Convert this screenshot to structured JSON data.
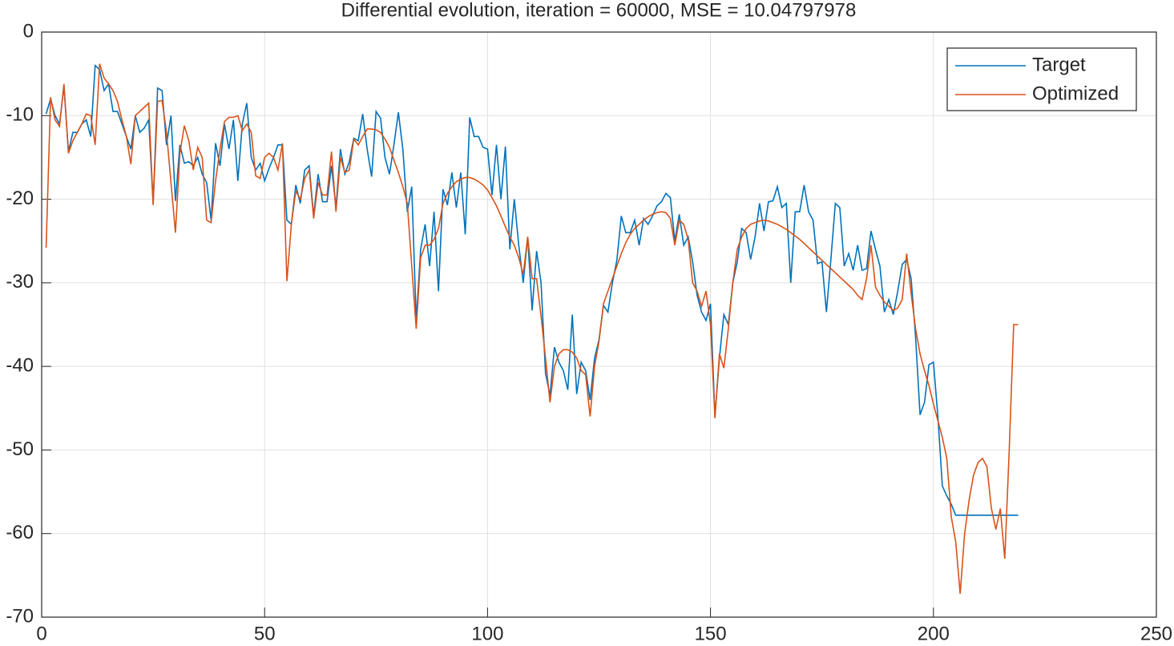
{
  "chart_data": {
    "type": "line",
    "title": "Differential evolution, iteration = 60000, MSE = 10.04797978",
    "x": [
      1,
      2,
      3,
      4,
      5,
      6,
      7,
      8,
      9,
      10,
      11,
      12,
      13,
      14,
      15,
      16,
      17,
      18,
      19,
      20,
      21,
      22,
      23,
      24,
      25,
      26,
      27,
      28,
      29,
      30,
      31,
      32,
      33,
      34,
      35,
      36,
      37,
      38,
      39,
      40,
      41,
      42,
      43,
      44,
      45,
      46,
      47,
      48,
      49,
      50,
      51,
      52,
      53,
      54,
      55,
      56,
      57,
      58,
      59,
      60,
      61,
      62,
      63,
      64,
      65,
      66,
      67,
      68,
      69,
      70,
      71,
      72,
      73,
      74,
      75,
      76,
      77,
      78,
      79,
      80,
      81,
      82,
      83,
      84,
      85,
      86,
      87,
      88,
      89,
      90,
      91,
      92,
      93,
      94,
      95,
      96,
      97,
      98,
      99,
      100,
      101,
      102,
      103,
      104,
      105,
      106,
      107,
      108,
      109,
      110,
      111,
      112,
      113,
      114,
      115,
      116,
      117,
      118,
      119,
      120,
      121,
      122,
      123,
      124,
      125,
      126,
      127,
      128,
      129,
      130,
      131,
      132,
      133,
      134,
      135,
      136,
      137,
      138,
      139,
      140,
      141,
      142,
      143,
      144,
      145,
      146,
      147,
      148,
      149,
      150,
      151,
      152,
      153,
      154,
      155,
      156,
      157,
      158,
      159,
      160,
      161,
      162,
      163,
      164,
      165,
      166,
      167,
      168,
      169,
      170,
      171,
      172,
      173,
      174,
      175,
      176,
      177,
      178,
      179,
      180,
      181,
      182,
      183,
      184,
      185,
      186,
      187,
      188,
      189,
      190,
      191,
      192,
      193,
      194,
      195,
      196,
      197,
      198,
      199,
      200,
      201,
      202,
      203,
      204,
      205,
      206,
      207,
      208,
      209,
      210,
      211,
      212,
      213,
      214,
      215,
      216,
      217,
      218,
      219
    ],
    "series": [
      {
        "name": "Target",
        "color": "#0072bd",
        "values": [
          -9.8,
          -8,
          -10,
          -11,
          -6.5,
          -14.3,
          -12,
          -12,
          -11,
          -10.5,
          -12.5,
          -4,
          -4.5,
          -7,
          -6.2,
          -9.5,
          -9.5,
          -11,
          -12.5,
          -14,
          -10,
          -12,
          -11.5,
          -10.5,
          -20.5,
          -6.7,
          -7,
          -13.5,
          -10,
          -20.2,
          -13.5,
          -15.7,
          -15.5,
          -16,
          -15,
          -17,
          -18,
          -22.5,
          -13.3,
          -16,
          -11,
          -14,
          -10.5,
          -17.8,
          -11,
          -8.5,
          -15,
          -16.5,
          -15.7,
          -17.8,
          -16.3,
          -15,
          -13.5,
          -13.5,
          -22.5,
          -23,
          -18.3,
          -20.5,
          -16.5,
          -16,
          -22,
          -17,
          -20.3,
          -20.3,
          -16,
          -21,
          -14,
          -17,
          -15.5,
          -12.7,
          -13,
          -9.8,
          -14,
          -17.3,
          -9.5,
          -10.3,
          -15,
          -17,
          -13.5,
          -9.6,
          -14,
          -21.5,
          -18.5,
          -34.5,
          -26,
          -23,
          -28,
          -21.5,
          -31,
          -18.8,
          -20.7,
          -16.8,
          -21,
          -16.8,
          -24.2,
          -10.2,
          -12.5,
          -12.5,
          -13.8,
          -14,
          -19.5,
          -13.5,
          -20,
          -13.7,
          -26,
          -20,
          -25.5,
          -30,
          -24.5,
          -33.3,
          -26.2,
          -30,
          -40.8,
          -43.5,
          -37.7,
          -39.5,
          -40.5,
          -42.8,
          -33.8,
          -43.3,
          -39.5,
          -40.5,
          -44,
          -39,
          -36.8,
          -32.7,
          -33.5,
          -30,
          -27.3,
          -22,
          -24,
          -24,
          -22.5,
          -25.5,
          -22.3,
          -23,
          -22,
          -20.8,
          -20.3,
          -19.3,
          -19.8,
          -25,
          -21.8,
          -25.5,
          -24.5,
          -27.5,
          -31.5,
          -33.5,
          -34.5,
          -32.5,
          -46,
          -39,
          -33.8,
          -35,
          -30,
          -27.5,
          -23.5,
          -24,
          -27.2,
          -24.5,
          -20.5,
          -23.8,
          -20.3,
          -20.2,
          -18.5,
          -21,
          -20.5,
          -30,
          -21.5,
          -21.5,
          -18.3,
          -21.5,
          -22.5,
          -27.7,
          -27.5,
          -33.5,
          -27.2,
          -20.5,
          -21,
          -28,
          -26.5,
          -28.5,
          -25.5,
          -28.5,
          -28.3,
          -23.8,
          -26,
          -28,
          -33.5,
          -32,
          -33.8,
          -31,
          -27.8,
          -27.2,
          -29.5,
          -36.5,
          -45.8,
          -44.3,
          -39.8,
          -39.5,
          -46,
          -54.3,
          -55.5,
          -56.5,
          -57.8,
          -57.8,
          -57.8,
          -57.8,
          -57.8,
          -57.8,
          -57.8,
          -57.8,
          -57.8,
          -57.8,
          -57.8,
          -57.8,
          -57.8,
          -57.8,
          -57.8
        ]
      },
      {
        "name": "Optimized",
        "color": "#d95319",
        "values": [
          -25.8,
          -7.8,
          -10.5,
          -11.3,
          -6.2,
          -14.5,
          -13,
          -12,
          -11,
          -9.8,
          -10,
          -13.5,
          -3.8,
          -5.5,
          -6.2,
          -7,
          -8.3,
          -10.5,
          -12.5,
          -15.8,
          -10,
          -9.5,
          -9,
          -8.5,
          -20.7,
          -8.3,
          -8.2,
          -12,
          -18,
          -24,
          -14.5,
          -11.2,
          -13,
          -16.5,
          -13.8,
          -15,
          -22.5,
          -22.8,
          -17.8,
          -14,
          -10.7,
          -10.2,
          -10.2,
          -10,
          -11.8,
          -11,
          -12,
          -17.2,
          -17.5,
          -15,
          -14.5,
          -15,
          -16.5,
          -13.3,
          -29.8,
          -23,
          -19,
          -20,
          -17.5,
          -16.5,
          -22.3,
          -18,
          -19.5,
          -19.5,
          -14.3,
          -21.5,
          -15,
          -16.8,
          -16.5,
          -12.8,
          -13.5,
          -12.5,
          -11.6,
          -11.6,
          -11.7,
          -12,
          -12.8,
          -13.8,
          -15.3,
          -16.8,
          -18.5,
          -20.5,
          -28,
          -35.5,
          -27,
          -25.5,
          -25.5,
          -24.8,
          -23.5,
          -20.5,
          -19.3,
          -18.5,
          -17.9,
          -17.6,
          -17.4,
          -17.4,
          -17.6,
          -17.9,
          -18.3,
          -18.9,
          -19.8,
          -20.8,
          -22,
          -23.3,
          -24.5,
          -25.5,
          -27,
          -29,
          -24.5,
          -29.5,
          -29.5,
          -34,
          -39,
          -44.3,
          -40,
          -38.5,
          -38,
          -38,
          -38.3,
          -39,
          -40.5,
          -41,
          -46,
          -40,
          -37,
          -32.5,
          -31,
          -29.5,
          -28,
          -26.5,
          -25.2,
          -24.2,
          -23.5,
          -23,
          -22.5,
          -22.1,
          -21.8,
          -21.6,
          -21.5,
          -21.6,
          -22.3,
          -25.5,
          -22.5,
          -23,
          -24.8,
          -30,
          -31,
          -32.8,
          -31,
          -35,
          -46.2,
          -38.5,
          -40.2,
          -35.5,
          -30,
          -26,
          -24.5,
          -23.5,
          -23,
          -22.8,
          -22.6,
          -22.5,
          -22.6,
          -22.8,
          -23,
          -23.3,
          -23.6,
          -24,
          -24.4,
          -24.8,
          -25.3,
          -25.8,
          -26.3,
          -26.8,
          -27.3,
          -27.8,
          -28.3,
          -28.8,
          -29.3,
          -29.8,
          -30.3,
          -30.8,
          -31.5,
          -32,
          -29.5,
          -25.5,
          -30.5,
          -31.5,
          -32.3,
          -32.8,
          -33.3,
          -33,
          -32,
          -26.5,
          -31.3,
          -35.5,
          -38.5,
          -40.5,
          -42.3,
          -44.5,
          -46.5,
          -48.5,
          -51,
          -58,
          -61,
          -67.2,
          -60,
          -56,
          -53,
          -51.5,
          -51,
          -52,
          -57,
          -59.5,
          -57,
          -63,
          -50,
          -35,
          -35
        ]
      }
    ],
    "xlim": [
      0,
      250
    ],
    "xticks": [
      0,
      50,
      100,
      150,
      200,
      250
    ],
    "ylim": [
      -70,
      0
    ],
    "yticks": [
      -70,
      -60,
      -50,
      -40,
      -30,
      -20,
      -10,
      0
    ],
    "grid": true,
    "legend": "upper right"
  }
}
